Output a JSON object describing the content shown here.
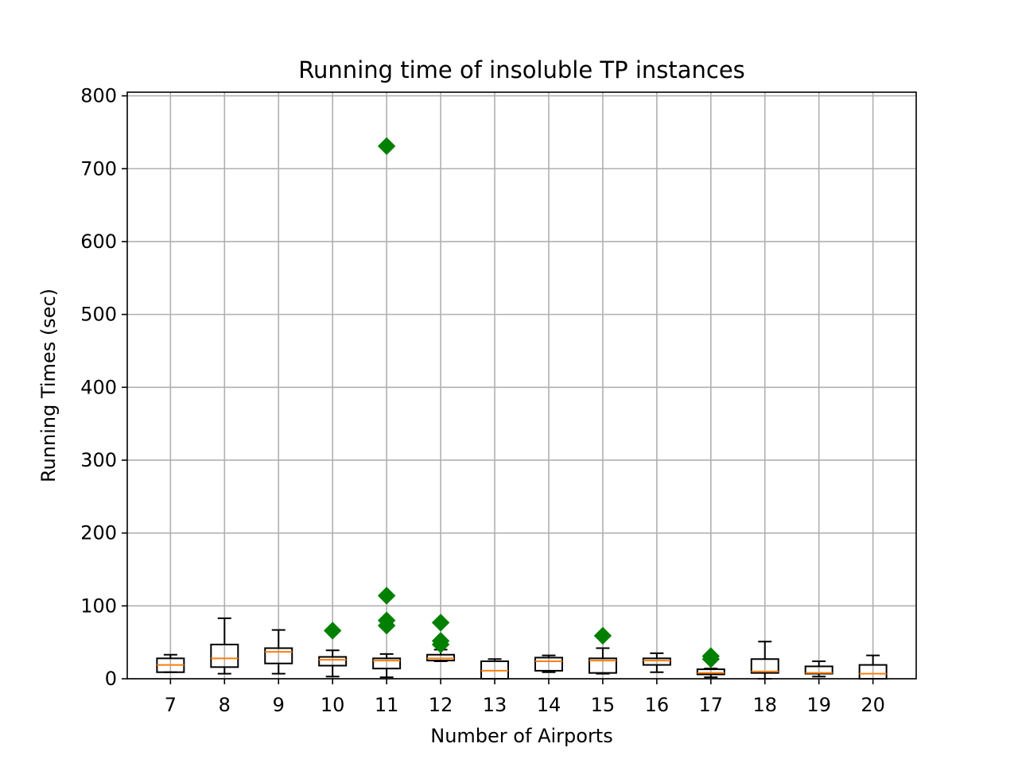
{
  "chart_data": {
    "type": "box",
    "title": "Running time of insoluble TP instances",
    "xlabel": "Number of Airports",
    "ylabel": "Running Times (sec)",
    "ylim": [
      0,
      805
    ],
    "yticks": [
      0,
      100,
      200,
      300,
      400,
      500,
      600,
      700,
      800
    ],
    "grid": true,
    "colors": {
      "box": "#000000",
      "median": "#ff7f0e",
      "outlier": "#008000",
      "grid": "#b0b0b0"
    },
    "categories": [
      "7",
      "8",
      "9",
      "10",
      "11",
      "12",
      "13",
      "14",
      "15",
      "16",
      "17",
      "18",
      "19",
      "20"
    ],
    "boxes": [
      {
        "label": "7",
        "whislo": 9,
        "q1": 9,
        "med": 19,
        "q3": 28,
        "whishi": 33,
        "fliers": []
      },
      {
        "label": "8",
        "whislo": 7,
        "q1": 16,
        "med": 28,
        "q3": 47,
        "whishi": 83,
        "fliers": []
      },
      {
        "label": "9",
        "whislo": 7,
        "q1": 21,
        "med": 37,
        "q3": 42,
        "whishi": 67,
        "fliers": []
      },
      {
        "label": "10",
        "whislo": 3,
        "q1": 18,
        "med": 26,
        "q3": 30,
        "whishi": 39,
        "fliers": [
          66
        ]
      },
      {
        "label": "11",
        "whislo": 2,
        "q1": 14,
        "med": 25,
        "q3": 28,
        "whishi": 34,
        "fliers": [
          731,
          114,
          80,
          73
        ]
      },
      {
        "label": "12",
        "whislo": 24,
        "q1": 25,
        "med": 28,
        "q3": 33,
        "whishi": 40,
        "fliers": [
          77,
          52,
          47
        ]
      },
      {
        "label": "13",
        "whislo": 0,
        "q1": 0,
        "med": 11,
        "q3": 24,
        "whishi": 27,
        "fliers": []
      },
      {
        "label": "14",
        "whislo": 9,
        "q1": 11,
        "med": 24,
        "q3": 29,
        "whishi": 32,
        "fliers": []
      },
      {
        "label": "15",
        "whislo": 7,
        "q1": 8,
        "med": 25,
        "q3": 28,
        "whishi": 42,
        "fliers": [
          59
        ]
      },
      {
        "label": "16",
        "whislo": 9,
        "q1": 19,
        "med": 25,
        "q3": 28,
        "whishi": 35,
        "fliers": []
      },
      {
        "label": "17",
        "whislo": 2,
        "q1": 6,
        "med": 8,
        "q3": 13,
        "whishi": 14,
        "fliers": [
          31,
          27
        ]
      },
      {
        "label": "18",
        "whislo": 0,
        "q1": 8,
        "med": 10,
        "q3": 27,
        "whishi": 51,
        "fliers": []
      },
      {
        "label": "19",
        "whislo": 3,
        "q1": 7,
        "med": 8,
        "q3": 17,
        "whishi": 24,
        "fliers": []
      },
      {
        "label": "20",
        "whislo": 0,
        "q1": 0,
        "med": 7,
        "q3": 19,
        "whishi": 32,
        "fliers": []
      }
    ]
  }
}
